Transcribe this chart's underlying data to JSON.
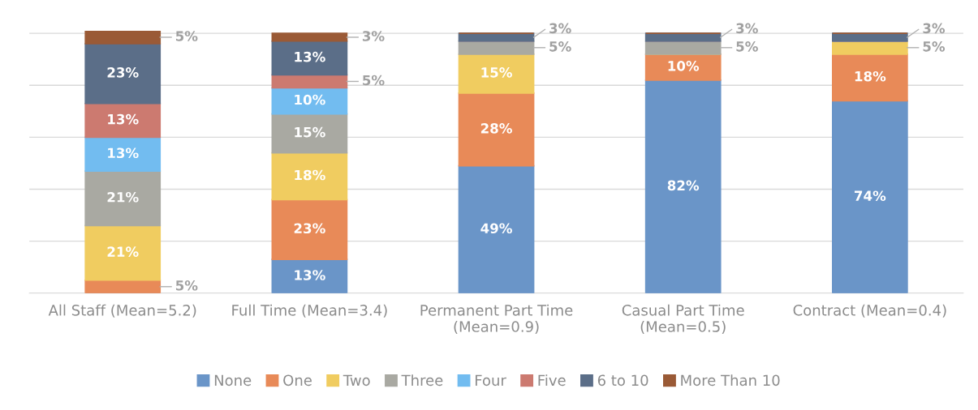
{
  "chart_data": {
    "type": "bar",
    "stacked": true,
    "categories": [
      "All Staff (Mean=5.2)",
      "Full Time (Mean=3.4)",
      "Permanent Part Time\n(Mean=0.9)",
      "Casual Part Time\n(Mean=0.5)",
      "Contract (Mean=0.4)"
    ],
    "series": [
      {
        "name": "None",
        "color": "#6a95c8",
        "values": [
          0,
          13,
          49,
          82,
          74
        ],
        "value_labels": [
          null,
          "13%",
          "49%",
          "82%",
          "74%"
        ]
      },
      {
        "name": "One",
        "color": "#e88a58",
        "values": [
          5,
          23,
          28,
          10,
          18
        ],
        "value_labels": [
          "5%",
          "23%",
          "28%",
          "10%",
          "18%"
        ]
      },
      {
        "name": "Two",
        "color": "#f0cc60",
        "values": [
          21,
          18,
          15,
          0,
          5
        ],
        "value_labels": [
          "21%",
          "18%",
          "15%",
          null,
          "5%"
        ]
      },
      {
        "name": "Three",
        "color": "#a9a9a2",
        "values": [
          21,
          15,
          5,
          5,
          0
        ],
        "value_labels": [
          "21%",
          "15%",
          "5%",
          "5%",
          null
        ]
      },
      {
        "name": "Four",
        "color": "#72bcf0",
        "values": [
          13,
          10,
          0,
          0,
          0
        ],
        "value_labels": [
          "13%",
          "10%",
          null,
          null,
          null
        ]
      },
      {
        "name": "Five",
        "color": "#cc7a70",
        "values": [
          13,
          5,
          0,
          0,
          0
        ],
        "value_labels": [
          "13%",
          "5%",
          null,
          null,
          null
        ]
      },
      {
        "name": "6 to 10",
        "color": "#5b6e88",
        "values": [
          23,
          13,
          3,
          3,
          3
        ],
        "value_labels": [
          "23%",
          "13%",
          "3%",
          "3%",
          "3%"
        ]
      },
      {
        "name": "More Than 10",
        "color": "#9a5a36",
        "values": [
          5,
          3,
          0,
          0,
          0
        ],
        "value_labels": [
          "5%",
          "3%",
          null,
          null,
          null
        ]
      }
    ],
    "ylim": [
      0,
      101
    ],
    "yticks": [
      {
        "value": 0,
        "label": null
      },
      {
        "value": 20,
        "label": null
      },
      {
        "value": 40,
        "label": null
      },
      {
        "value": 60,
        "label": null
      },
      {
        "value": 80,
        "label": null
      },
      {
        "value": 100,
        "label": null
      }
    ],
    "tick_labels": "x",
    "grid": "y",
    "legend": "bottom"
  }
}
